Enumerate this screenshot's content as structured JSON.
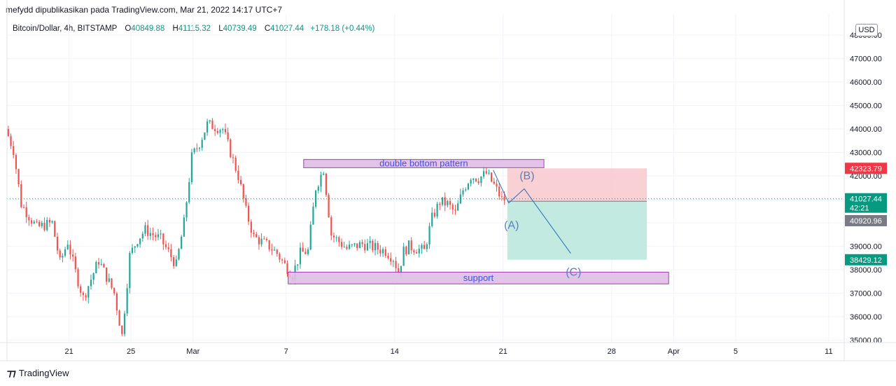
{
  "header": {
    "publisher": "mefydd dipublikasikan pada TradingView.com, Mar 21, 2022 14:17 UTC+7"
  },
  "symbol": {
    "name": "Bitcoin/Dollar, 4h, BITSTAMP",
    "open_label": "O",
    "open": "40849.88",
    "high_label": "H",
    "high": "41115.32",
    "low_label": "L",
    "low": "40739.49",
    "close_label": "C",
    "close": "41027.44",
    "change": "+178.18 (+0.44%)"
  },
  "currency": "USD",
  "footer": {
    "brand": "TradingView"
  },
  "colors": {
    "up": "#26a69a",
    "down": "#ef5350",
    "annotation_box": "#e1bee7",
    "annotation_border": "#9c27b0",
    "annotation_text": "#3f51e0",
    "stop_zone": "#f8c8cc",
    "target_zone": "#b9e6dc",
    "price_red": "#f23645",
    "price_green": "#089981",
    "price_gray": "#787b86"
  },
  "chart_data": {
    "type": "candlestick",
    "title": "",
    "y_range": [
      34900,
      48600
    ],
    "x_range": [
      "2022-02-17",
      "2022-04-12"
    ],
    "y_ticks": [
      35000,
      36000,
      37000,
      38000,
      39000,
      40000,
      41000,
      42000,
      43000,
      44000,
      45000,
      46000,
      47000,
      48000
    ],
    "y_tick_labels": [
      "35000.00",
      "36000.00",
      "37000.00",
      "38000.00",
      "39000.00",
      "40000.00",
      "41000.00",
      "42000.00",
      "43000.00",
      "44000.00",
      "45000.00",
      "46000.00",
      "47000.00",
      "48000.00"
    ],
    "x_ticks": [
      {
        "date": "2022-02-21",
        "label": "21"
      },
      {
        "date": "2022-02-25",
        "label": "25"
      },
      {
        "date": "2022-03-01",
        "label": "Mar"
      },
      {
        "date": "2022-03-07",
        "label": "7"
      },
      {
        "date": "2022-03-14",
        "label": "14"
      },
      {
        "date": "2022-03-21",
        "label": "21"
      },
      {
        "date": "2022-03-28",
        "label": "28"
      },
      {
        "date": "2022-04-01",
        "label": "Apr"
      },
      {
        "date": "2022-04-05",
        "label": "5"
      },
      {
        "date": "2022-04-11",
        "label": "11"
      }
    ],
    "grid": true,
    "price_path": [
      {
        "date": "2022-02-17",
        "price": 44000
      },
      {
        "date": "2022-02-17",
        "price": 43100
      },
      {
        "date": "2022-02-18",
        "price": 40800
      },
      {
        "date": "2022-02-19",
        "price": 39800
      },
      {
        "date": "2022-02-20",
        "price": 40000
      },
      {
        "date": "2022-02-20",
        "price": 38300
      },
      {
        "date": "2022-02-21",
        "price": 39200
      },
      {
        "date": "2022-02-21",
        "price": 37900
      },
      {
        "date": "2022-02-22",
        "price": 36800
      },
      {
        "date": "2022-02-23",
        "price": 38400
      },
      {
        "date": "2022-02-24",
        "price": 37000
      },
      {
        "date": "2022-02-24",
        "price": 35200
      },
      {
        "date": "2022-02-25",
        "price": 38600
      },
      {
        "date": "2022-02-25",
        "price": 39300
      },
      {
        "date": "2022-02-26",
        "price": 39700
      },
      {
        "date": "2022-02-27",
        "price": 39300
      },
      {
        "date": "2022-02-28",
        "price": 38200
      },
      {
        "date": "2022-02-28",
        "price": 40000
      },
      {
        "date": "2022-03-01",
        "price": 42800
      },
      {
        "date": "2022-03-01",
        "price": 43400
      },
      {
        "date": "2022-03-02",
        "price": 44200
      },
      {
        "date": "2022-03-03",
        "price": 44000
      },
      {
        "date": "2022-03-03",
        "price": 43000
      },
      {
        "date": "2022-03-04",
        "price": 42000
      },
      {
        "date": "2022-03-04",
        "price": 40500
      },
      {
        "date": "2022-03-05",
        "price": 39400
      },
      {
        "date": "2022-03-06",
        "price": 39000
      },
      {
        "date": "2022-03-06",
        "price": 38700
      },
      {
        "date": "2022-03-07",
        "price": 38200
      },
      {
        "date": "2022-03-07",
        "price": 37800
      },
      {
        "date": "2022-03-08",
        "price": 38700
      },
      {
        "date": "2022-03-08",
        "price": 38800
      },
      {
        "date": "2022-03-09",
        "price": 41500
      },
      {
        "date": "2022-03-09",
        "price": 42300
      },
      {
        "date": "2022-03-10",
        "price": 39500
      },
      {
        "date": "2022-03-10",
        "price": 39200
      },
      {
        "date": "2022-03-11",
        "price": 38900
      },
      {
        "date": "2022-03-12",
        "price": 39100
      },
      {
        "date": "2022-03-13",
        "price": 38900
      },
      {
        "date": "2022-03-13",
        "price": 38800
      },
      {
        "date": "2022-03-14",
        "price": 38500
      },
      {
        "date": "2022-03-14",
        "price": 37900
      },
      {
        "date": "2022-03-14",
        "price": 38800
      },
      {
        "date": "2022-03-15",
        "price": 39000
      },
      {
        "date": "2022-03-16",
        "price": 38800
      },
      {
        "date": "2022-03-16",
        "price": 40200
      },
      {
        "date": "2022-03-17",
        "price": 40900
      },
      {
        "date": "2022-03-17",
        "price": 40800
      },
      {
        "date": "2022-03-18",
        "price": 40400
      },
      {
        "date": "2022-03-18",
        "price": 41400
      },
      {
        "date": "2022-03-19",
        "price": 42000
      },
      {
        "date": "2022-03-19",
        "price": 41900
      },
      {
        "date": "2022-03-20",
        "price": 42100
      },
      {
        "date": "2022-03-20",
        "price": 41600
      },
      {
        "date": "2022-03-21",
        "price": 41000
      }
    ],
    "annotations": [
      {
        "type": "box",
        "label": "double bottom pattern",
        "x_start": "2022-03-08",
        "x_end": "2022-03-23",
        "y_low": 42350,
        "y_high": 42700
      },
      {
        "type": "box",
        "label": "support",
        "x_start": "2022-03-07",
        "x_end": "2022-03-31",
        "y_low": 37400,
        "y_high": 37900
      }
    ],
    "wave_labels": [
      {
        "label": "(A)",
        "date": "2022-03-21",
        "price": 39900
      },
      {
        "label": "(B)",
        "date": "2022-03-22",
        "price": 42000
      },
      {
        "label": "(C)",
        "date": "2022-03-25",
        "price": 37900
      }
    ],
    "wave_path": [
      {
        "date": "2022-03-20",
        "price": 42250
      },
      {
        "date": "2022-03-21",
        "price": 40850
      },
      {
        "date": "2022-03-22",
        "price": 41450
      },
      {
        "date": "2022-03-25",
        "price": 38700
      }
    ],
    "position": {
      "x_start": "2022-03-21",
      "x_end": "2022-03-30",
      "entry": 40920.96,
      "stop": 42323.79,
      "target": 38429.12
    },
    "current_price_line": 41027.44,
    "price_labels": [
      {
        "value": "42323.79",
        "price": 42323.79,
        "color": "#f23645"
      },
      {
        "value": "41027.44",
        "price": 41027.44,
        "color": "#089981",
        "sub": "42:21"
      },
      {
        "value": "40920.96",
        "price": 40920.96,
        "color": "#787b86"
      },
      {
        "value": "38429.12",
        "price": 38429.12,
        "color": "#089981"
      }
    ]
  }
}
